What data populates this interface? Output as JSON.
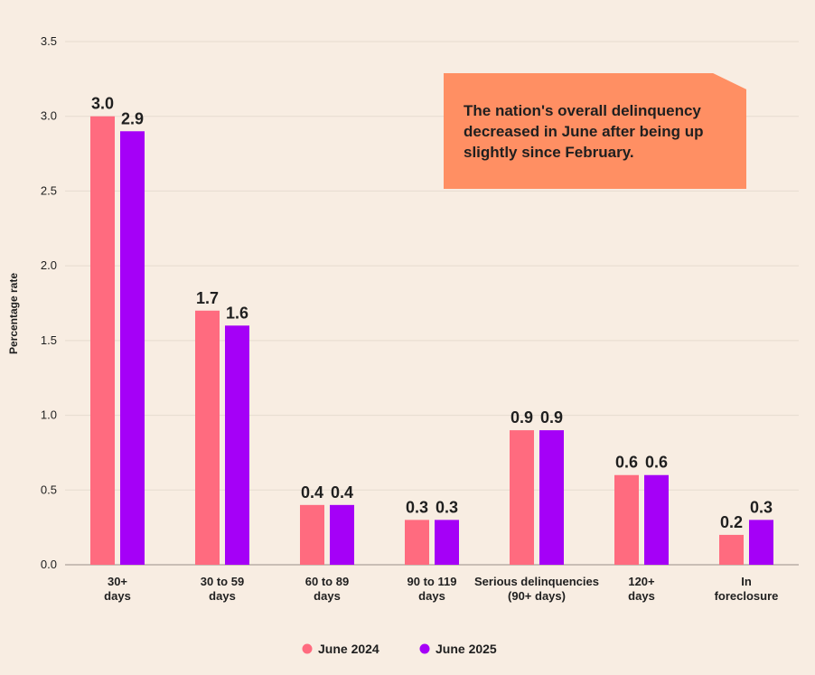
{
  "chart_data": {
    "type": "bar",
    "title": "",
    "xlabel": "",
    "ylabel": "Percentage rate",
    "ylim": [
      0,
      3.5
    ],
    "yticks": [
      "0.0",
      "0.5",
      "1.0",
      "1.5",
      "2.0",
      "2.5",
      "3.0",
      "3.5"
    ],
    "categories": [
      [
        "30+",
        "days"
      ],
      [
        "30 to 59",
        "days"
      ],
      [
        "60 to 89",
        "days"
      ],
      [
        "90 to 119",
        "days"
      ],
      [
        "Serious delinquencies",
        "(90+ days)"
      ],
      [
        "120+",
        "days"
      ],
      [
        "In",
        "foreclosure"
      ]
    ],
    "series": [
      {
        "name": "June 2024",
        "color": "#ff6b7f",
        "values": [
          3.0,
          1.7,
          0.4,
          0.3,
          0.9,
          0.6,
          0.2
        ],
        "labels": [
          "3.0",
          "1.7",
          "0.4",
          "0.3",
          "0.9",
          "0.6",
          "0.2"
        ]
      },
      {
        "name": "June 2025",
        "color": "#a500f7",
        "values": [
          2.9,
          1.6,
          0.4,
          0.3,
          0.9,
          0.6,
          0.3
        ],
        "labels": [
          "2.9",
          "1.6",
          "0.4",
          "0.3",
          "0.9",
          "0.6",
          "0.3"
        ]
      }
    ],
    "annotation": "The nation's overall delinquency decreased in June after being up slightly since February.",
    "colors": {
      "background": "#f8ede2",
      "grid": "#e6dbcf",
      "axis": "#9a9088",
      "text": "#1f1f1f",
      "callout": "#ff8f63"
    }
  }
}
